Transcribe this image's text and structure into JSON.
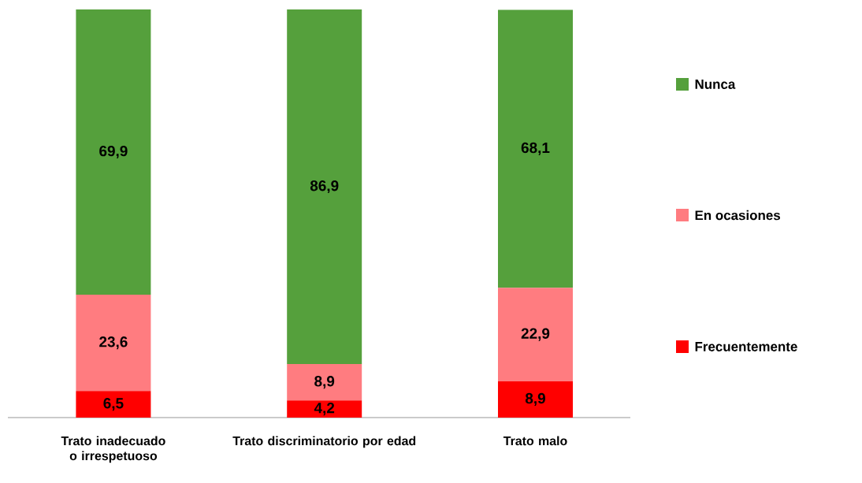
{
  "chart_data": {
    "type": "bar",
    "stacked": true,
    "categories": [
      "Trato inadecuado o irrespetuoso",
      "Trato discriminatorio por edad",
      "Trato malo"
    ],
    "legend": "right",
    "series": [
      {
        "name": "Frecuentemente",
        "color": "#ff0000",
        "values": [
          6.5,
          4.2,
          8.9
        ],
        "value_labels": [
          "6,5",
          "4,2",
          "8,9"
        ]
      },
      {
        "name": "En ocasiones",
        "color": "#ff7c80",
        "values": [
          23.6,
          8.9,
          22.9
        ],
        "value_labels": [
          "23,6",
          "8,9",
          "22,9"
        ]
      },
      {
        "name": "Nunca",
        "color": "#55a03c",
        "values": [
          69.9,
          86.9,
          68.1
        ],
        "value_labels": [
          "69,9",
          "86,9",
          "68,1"
        ]
      }
    ]
  }
}
